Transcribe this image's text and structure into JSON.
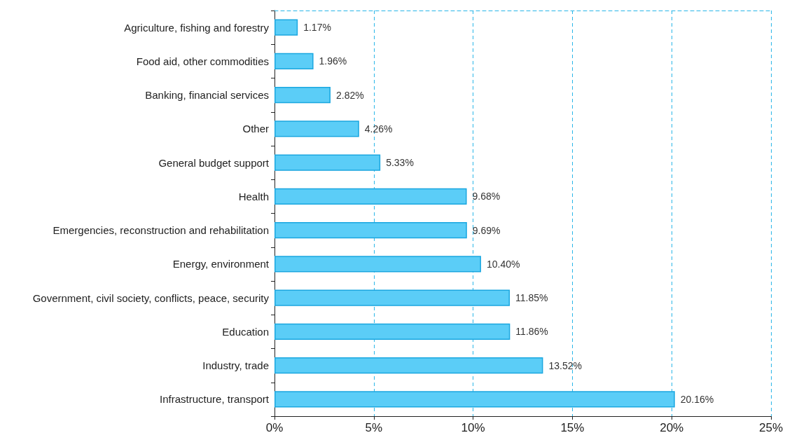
{
  "chart_data": {
    "type": "bar",
    "orientation": "horizontal",
    "categories": [
      "Agriculture, fishing and forestry",
      "Food aid, other commodities",
      "Banking, financial services",
      "Other",
      "General budget support",
      "Health",
      "Emergencies, reconstruction and rehabilitation",
      "Energy, environment",
      "Government, civil society, conflicts, peace, security",
      "Education",
      "Industry, trade",
      "Infrastructure, transport"
    ],
    "values": [
      1.17,
      1.96,
      2.82,
      4.26,
      5.33,
      9.68,
      9.69,
      10.4,
      11.85,
      11.86,
      13.52,
      20.16
    ],
    "value_labels": [
      "1.17%",
      "1.96%",
      "2.82%",
      "4.26%",
      "5.33%",
      "9.68%",
      "9.69%",
      "10.40%",
      "11.85%",
      "11.86%",
      "13.52%",
      "20.16%"
    ],
    "color": "#5bcdf7",
    "xlim": [
      0,
      25
    ],
    "xticks": [
      {
        "value": 0,
        "label": "0%"
      },
      {
        "value": 5,
        "label": "5%"
      },
      {
        "value": 10,
        "label": "10%"
      },
      {
        "value": 15,
        "label": "15%"
      },
      {
        "value": 20,
        "label": "20%"
      },
      {
        "value": 25,
        "label": "25%"
      }
    ],
    "grid": "x"
  }
}
